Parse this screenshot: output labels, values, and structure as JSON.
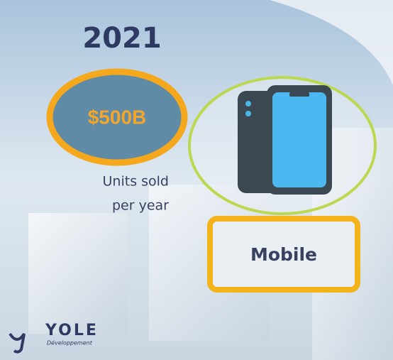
{
  "header": {
    "year": "2021"
  },
  "stat": {
    "value": "$500B",
    "caption": [
      "Units sold",
      "per year"
    ]
  },
  "category": "Mobile",
  "logo": {
    "name": "YOLE",
    "tagline": "Développement"
  }
}
